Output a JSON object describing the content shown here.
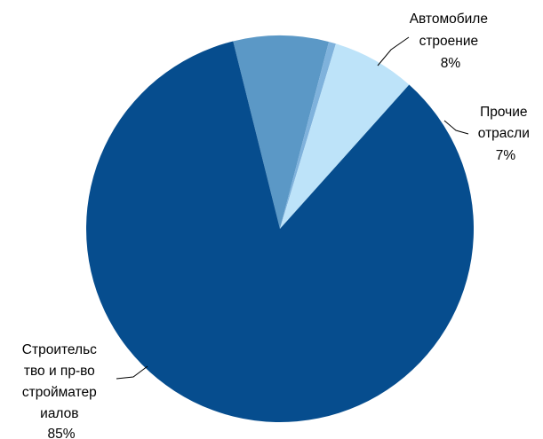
{
  "chart_data": {
    "type": "pie",
    "start_angle_deg": 104,
    "direction": "clockwise",
    "slices": [
      {
        "label_lines": [
          "Автомобиле",
          "строение",
          "8%"
        ],
        "value": 8,
        "color": "#5b98c6"
      },
      {
        "label_lines": [],
        "value": 0.6,
        "color": "#7fb2dc"
      },
      {
        "label_lines": [
          "Прочие",
          "отрасли",
          "7%"
        ],
        "value": 7,
        "color": "#bde3f9"
      },
      {
        "label_lines": [
          "Строительс",
          "тво и пр-во",
          "стройматер",
          "иалов",
          "85%"
        ],
        "value": 85,
        "color": "#064d8e"
      }
    ]
  }
}
